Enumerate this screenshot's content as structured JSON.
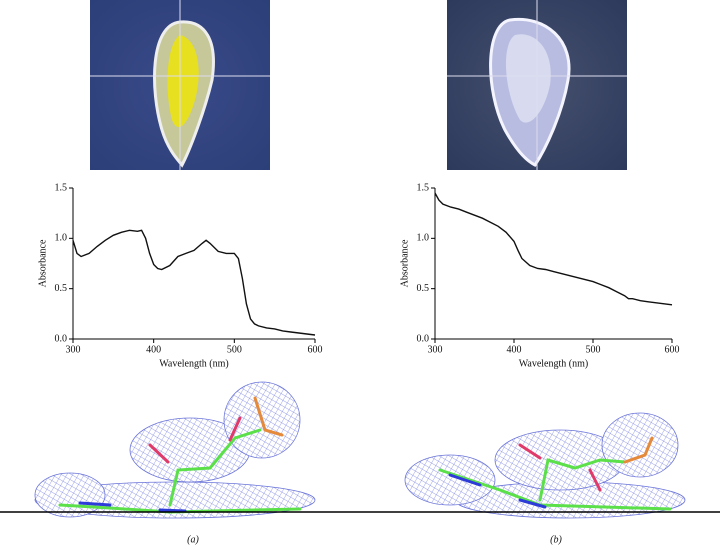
{
  "chart_data": [
    {
      "type": "line",
      "label": "(a)",
      "xlabel": "Wavelength (nm)",
      "ylabel": "Absorbance",
      "color": "#111111",
      "x": [
        300,
        305,
        310,
        320,
        330,
        340,
        350,
        360,
        370,
        380,
        385,
        390,
        395,
        400,
        405,
        410,
        420,
        430,
        440,
        450,
        460,
        465,
        470,
        480,
        490,
        500,
        505,
        510,
        515,
        520,
        525,
        530,
        540,
        550,
        560,
        570,
        580,
        590,
        600
      ],
      "values": [
        0.98,
        0.85,
        0.82,
        0.85,
        0.92,
        0.98,
        1.03,
        1.06,
        1.08,
        1.07,
        1.08,
        1.0,
        0.85,
        0.74,
        0.7,
        0.69,
        0.73,
        0.82,
        0.85,
        0.88,
        0.95,
        0.98,
        0.95,
        0.87,
        0.85,
        0.85,
        0.8,
        0.6,
        0.35,
        0.2,
        0.15,
        0.13,
        0.11,
        0.1,
        0.08,
        0.07,
        0.06,
        0.05,
        0.04
      ],
      "xlim": [
        300,
        600
      ],
      "xticks": [
        300,
        400,
        500,
        600
      ],
      "ylim": [
        0,
        1.5
      ],
      "yticks": [
        {
          "value": 0,
          "label": "0.0"
        },
        0.5,
        {
          "value": 1,
          "label": "1.0"
        },
        1.5
      ]
    },
    {
      "type": "line",
      "label": "(b)",
      "xlabel": "Wavelength (nm)",
      "ylabel": "Absorbance",
      "color": "#111111",
      "x": [
        300,
        305,
        310,
        320,
        330,
        340,
        350,
        360,
        370,
        380,
        390,
        400,
        405,
        410,
        420,
        430,
        440,
        450,
        460,
        470,
        480,
        490,
        500,
        510,
        520,
        530,
        540,
        545,
        550,
        560,
        570,
        580,
        590,
        600
      ],
      "values": [
        1.45,
        1.38,
        1.34,
        1.31,
        1.29,
        1.26,
        1.23,
        1.2,
        1.16,
        1.12,
        1.06,
        0.97,
        0.88,
        0.8,
        0.73,
        0.7,
        0.69,
        0.67,
        0.65,
        0.63,
        0.61,
        0.59,
        0.57,
        0.54,
        0.51,
        0.47,
        0.43,
        0.4,
        0.4,
        0.38,
        0.37,
        0.36,
        0.35,
        0.34
      ],
      "xlim": [
        300,
        600
      ],
      "xticks": [
        300,
        400,
        500,
        600
      ],
      "ylim": [
        0,
        1.5
      ],
      "yticks": [
        {
          "value": 0,
          "label": "0.0"
        },
        0.5,
        {
          "value": 1,
          "label": "1.0"
        },
        1.5
      ]
    }
  ]
}
